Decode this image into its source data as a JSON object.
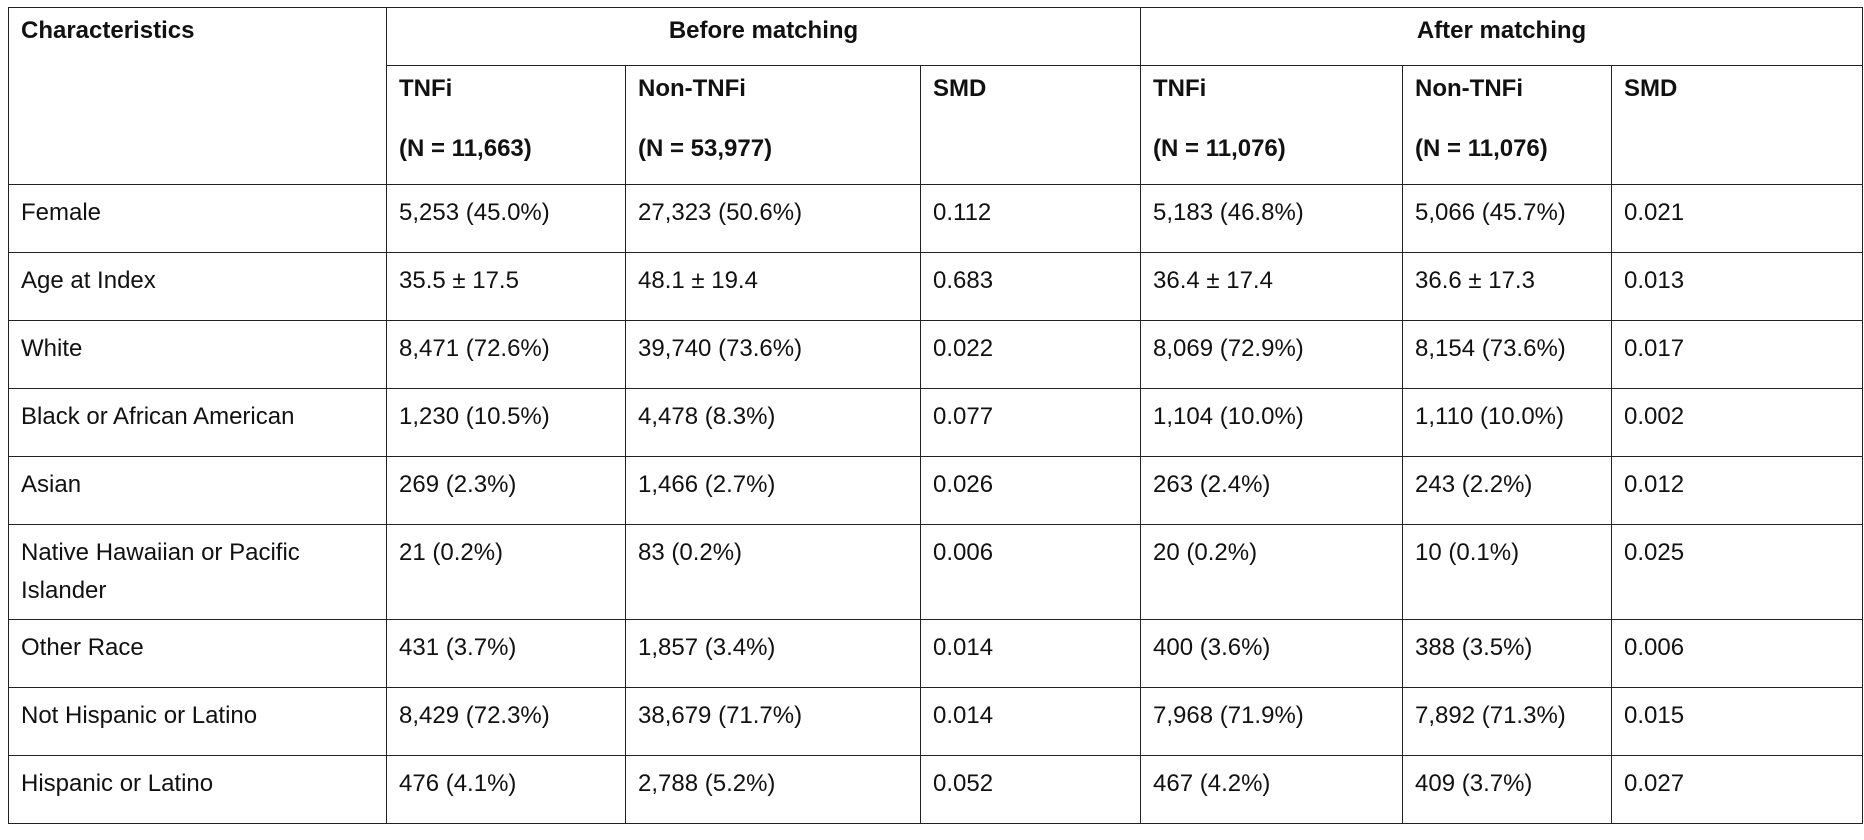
{
  "table": {
    "header": {
      "characteristics": "Characteristics",
      "before_matching": "Before matching",
      "after_matching": "After matching",
      "before_cols": [
        {
          "label": "TNFi",
          "n": "(N = 11,663)"
        },
        {
          "label": "Non-TNFi",
          "n": "(N = 53,977)"
        },
        {
          "label": "SMD",
          "n": ""
        }
      ],
      "after_cols": [
        {
          "label": "TNFi",
          "n": "(N = 11,076)"
        },
        {
          "label": "Non-TNFi",
          "n": "(N = 11,076)"
        },
        {
          "label": "SMD",
          "n": ""
        }
      ]
    },
    "rows": [
      {
        "name": "Female",
        "cells": [
          "5,253 (45.0%)",
          "27,323 (50.6%)",
          "0.112",
          "5,183 (46.8%)",
          "5,066 (45.7%)",
          "0.021"
        ]
      },
      {
        "name": "Age at Index",
        "cells": [
          "35.5 ± 17.5",
          "48.1 ± 19.4",
          "0.683",
          "36.4 ± 17.4",
          "36.6 ± 17.3",
          "0.013"
        ]
      },
      {
        "name": "White",
        "cells": [
          "8,471 (72.6%)",
          "39,740 (73.6%)",
          "0.022",
          "8,069 (72.9%)",
          "8,154 (73.6%)",
          "0.017"
        ]
      },
      {
        "name": "Black or African American",
        "cells": [
          "1,230 (10.5%)",
          "4,478 (8.3%)",
          "0.077",
          "1,104 (10.0%)",
          "1,110 (10.0%)",
          "0.002"
        ]
      },
      {
        "name": "Asian",
        "cells": [
          "269 (2.3%)",
          "1,466 (2.7%)",
          "0.026",
          "263 (2.4%)",
          "243 (2.2%)",
          "0.012"
        ]
      },
      {
        "name": "Native Hawaiian or Pacific Islander",
        "cells": [
          "21 (0.2%)",
          "83 (0.2%)",
          "0.006",
          "20 (0.2%)",
          "10 (0.1%)",
          "0.025"
        ]
      },
      {
        "name": "Other Race",
        "cells": [
          "431 (3.7%)",
          "1,857 (3.4%)",
          "0.014",
          "400 (3.6%)",
          "388 (3.5%)",
          "0.006"
        ]
      },
      {
        "name": "Not Hispanic or Latino",
        "cells": [
          "8,429 (72.3%)",
          "38,679 (71.7%)",
          "0.014",
          "7,968 (71.9%)",
          "7,892 (71.3%)",
          "0.015"
        ]
      },
      {
        "name": "Hispanic or Latino",
        "cells": [
          "476 (4.1%)",
          "2,788 (5.2%)",
          "0.052",
          "467 (4.2%)",
          "409 (3.7%)",
          "0.027"
        ]
      }
    ]
  }
}
